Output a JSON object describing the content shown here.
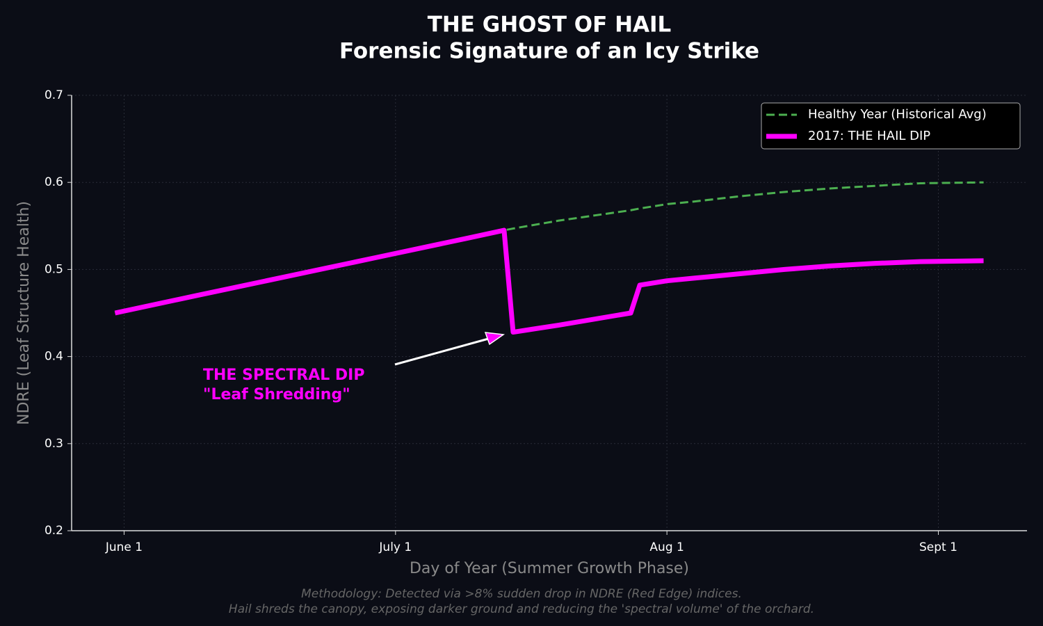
{
  "chart_data": {
    "type": "line",
    "title": "THE GHOST OF HAIL",
    "subtitle": "Forensic Signature of an Icy Strike",
    "x_label": "Day of Year (Summer Growth Phase)",
    "y_label": "NDRE (Leaf Structure Health)",
    "x": [
      151,
      160,
      170,
      180,
      190,
      194,
      195,
      200,
      208,
      209,
      212,
      215,
      220,
      225,
      230,
      235,
      240,
      247
    ],
    "series": [
      {
        "name": "Healthy Year (Historical Avg)",
        "color": "#4caf50",
        "style": "dashed",
        "values": [
          0.45,
          0.47,
          0.492,
          0.514,
          0.536,
          0.545,
          0.547,
          0.556,
          0.568,
          0.57,
          0.575,
          0.578,
          0.584,
          0.589,
          0.593,
          0.596,
          0.599,
          0.6
        ]
      },
      {
        "name": "2017: THE HAIL DIP",
        "color": "#ff00ff",
        "style": "solid",
        "values": [
          0.45,
          0.47,
          0.492,
          0.514,
          0.536,
          0.545,
          0.428,
          0.436,
          0.45,
          0.482,
          0.487,
          0.49,
          0.495,
          0.5,
          0.504,
          0.507,
          0.509,
          0.51
        ]
      }
    ],
    "xlim": [
      146.2,
      251.8
    ],
    "xticks": [
      {
        "value": 152,
        "label": "June 1"
      },
      {
        "value": 182,
        "label": "July 1"
      },
      {
        "value": 212,
        "label": "Aug 1"
      },
      {
        "value": 242,
        "label": "Sept 1"
      }
    ],
    "ylim": [
      0.2,
      0.7
    ],
    "yticks": [
      0.2,
      0.3,
      0.4,
      0.5,
      0.6,
      0.7
    ],
    "grid": true,
    "legend": "upper right",
    "annotation": {
      "lines": [
        "THE SPECTRAL DIP",
        "\"Leaf Shredding\""
      ],
      "color": "#ff00ff"
    },
    "footnote": [
      "Methodology: Detected via >8% sudden drop in NDRE (Red Edge) indices.",
      "Hail shreds the canopy, exposing darker ground and reducing the 'spectral volume' of the orchard."
    ]
  }
}
